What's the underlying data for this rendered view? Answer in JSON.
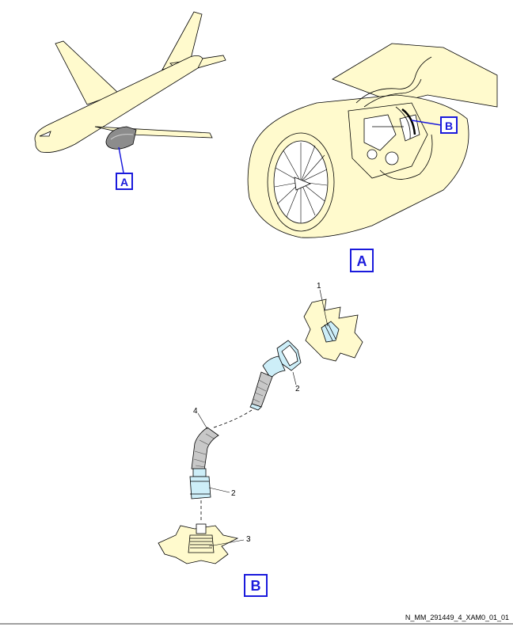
{
  "labels": {
    "view_a_on_aircraft": "A",
    "view_b_on_engine": "B",
    "view_a_title": "A",
    "view_b_title": "B"
  },
  "items": {
    "item_1": "1",
    "item_2_upper": "2",
    "item_2_lower": "2",
    "item_3": "3",
    "item_4": "4"
  },
  "footer": {
    "drawing_ref": "N_MM_291449_4_XAM0_01_01"
  },
  "colors": {
    "callout_blue": "#1a1adc",
    "structure_fill": "#fffacd",
    "fitting_fill": "#cdeef8",
    "line": "#000000"
  }
}
